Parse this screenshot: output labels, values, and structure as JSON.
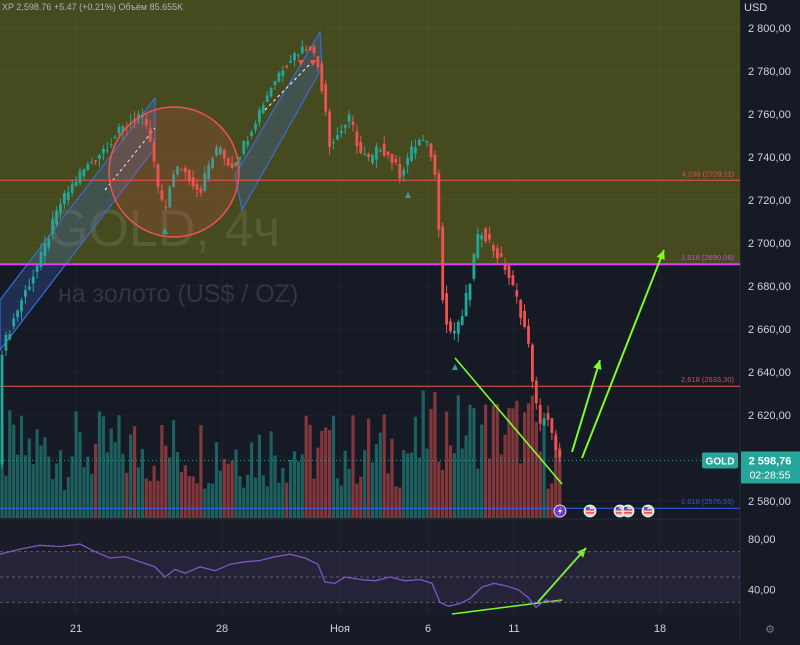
{
  "header": {
    "info": "XP 2,598.76 +5.47 (+0.21%) Объём 85.655K",
    "currency": "USD"
  },
  "watermark": {
    "symbol_tf": "GOLD, 4ч",
    "description": "на золото (US$ / OZ)"
  },
  "price_tag": {
    "label": "GOLD",
    "price": "2 598,76",
    "countdown": "02:28:55"
  },
  "fib_labels": [
    "4,236 (2729,11)",
    "1,618 (2690,06)",
    "2,618 (2633,30)",
    "1,618 (2576,55)"
  ],
  "colors": {
    "bull": "#26a69a",
    "bear": "#ef5350",
    "zone": "#454a1f",
    "arrow": "#7cfc2a",
    "channel": "#3d6bd8",
    "rsi": "#7e57c2",
    "background": "#161a25"
  },
  "icons": [
    "lightning-icon",
    "us-flag-icon",
    "us-flag-icon",
    "us-flag-icon",
    "us-flag-icon"
  ],
  "chart_data": [
    {
      "type": "candlestick",
      "title": "GOLD, 4ч",
      "subtitle": "на золото (US$ / OZ)",
      "y_ticks": [
        "2 580,00",
        "2 600,00",
        "2 620,00",
        "2 640,00",
        "2 660,00",
        "2 680,00",
        "2 700,00",
        "2 720,00",
        "2 740,00",
        "2 760,00",
        "2 780,00",
        "2 800,00"
      ],
      "x_ticks": [
        "21",
        "28",
        "Ноя",
        "6",
        "11",
        "18"
      ],
      "ylim": [
        2572,
        2813
      ],
      "levels": [
        {
          "label": "4,236 (2729,11)",
          "price": 2729.11,
          "color": "#ef5350"
        },
        {
          "label": "1,618 (2690,06)",
          "price": 2690.06,
          "color": "#e040fb"
        },
        {
          "label": "2,618 (2633,30)",
          "price": 2633.3,
          "color": "#ef5350"
        },
        {
          "label": "1,618 (2576,55)",
          "price": 2576.55,
          "color": "#2962ff"
        }
      ],
      "highlight_zone": {
        "from": 2690,
        "to": 2813
      },
      "last_price": 2598.76,
      "price_path": [
        [
          0,
          2648
        ],
        [
          20,
          2672
        ],
        [
          40,
          2692
        ],
        [
          60,
          2718
        ],
        [
          80,
          2732
        ],
        [
          100,
          2742
        ],
        [
          120,
          2752
        ],
        [
          140,
          2760
        ],
        [
          150,
          2748
        ],
        [
          155,
          2734
        ],
        [
          160,
          2720
        ],
        [
          165,
          2715
        ],
        [
          170,
          2728
        ],
        [
          180,
          2736
        ],
        [
          190,
          2730
        ],
        [
          200,
          2724
        ],
        [
          210,
          2738
        ],
        [
          220,
          2745
        ],
        [
          230,
          2735
        ],
        [
          240,
          2742
        ],
        [
          250,
          2752
        ],
        [
          260,
          2762
        ],
        [
          270,
          2772
        ],
        [
          280,
          2780
        ],
        [
          290,
          2786
        ],
        [
          300,
          2790
        ],
        [
          310,
          2792
        ],
        [
          318,
          2782
        ],
        [
          325,
          2765
        ],
        [
          330,
          2745
        ],
        [
          340,
          2752
        ],
        [
          350,
          2758
        ],
        [
          360,
          2742
        ],
        [
          370,
          2738
        ],
        [
          380,
          2745
        ],
        [
          390,
          2740
        ],
        [
          400,
          2732
        ],
        [
          410,
          2742
        ],
        [
          420,
          2748
        ],
        [
          430,
          2744
        ],
        [
          436,
          2728
        ],
        [
          440,
          2700
        ],
        [
          444,
          2664
        ],
        [
          452,
          2658
        ],
        [
          460,
          2662
        ],
        [
          470,
          2682
        ],
        [
          476,
          2700
        ],
        [
          482,
          2706
        ],
        [
          490,
          2700
        ],
        [
          500,
          2692
        ],
        [
          506,
          2688
        ],
        [
          512,
          2680
        ],
        [
          518,
          2672
        ],
        [
          524,
          2662
        ],
        [
          530,
          2648
        ],
        [
          534,
          2630
        ],
        [
          540,
          2614
        ],
        [
          546,
          2622
        ],
        [
          552,
          2610
        ],
        [
          557,
          2600
        ],
        [
          561,
          2598
        ]
      ],
      "volume_note": "volume bars, no scale shown"
    },
    {
      "type": "line",
      "name": "RSI",
      "y_ticks": [
        "40,00",
        "80,00"
      ],
      "ylim": [
        20,
        95
      ],
      "band": [
        30,
        70
      ],
      "values": [
        [
          0,
          68
        ],
        [
          20,
          72
        ],
        [
          40,
          75
        ],
        [
          60,
          74
        ],
        [
          80,
          76
        ],
        [
          95,
          70
        ],
        [
          110,
          65
        ],
        [
          125,
          66
        ],
        [
          140,
          62
        ],
        [
          155,
          58
        ],
        [
          165,
          50
        ],
        [
          175,
          56
        ],
        [
          185,
          53
        ],
        [
          200,
          58
        ],
        [
          215,
          55
        ],
        [
          230,
          60
        ],
        [
          245,
          62
        ],
        [
          260,
          63
        ],
        [
          275,
          66
        ],
        [
          290,
          68
        ],
        [
          305,
          65
        ],
        [
          318,
          60
        ],
        [
          325,
          46
        ],
        [
          335,
          45
        ],
        [
          345,
          50
        ],
        [
          360,
          48
        ],
        [
          375,
          47
        ],
        [
          390,
          50
        ],
        [
          405,
          47
        ],
        [
          420,
          48
        ],
        [
          432,
          45
        ],
        [
          440,
          30
        ],
        [
          448,
          27
        ],
        [
          460,
          29
        ],
        [
          470,
          33
        ],
        [
          482,
          42
        ],
        [
          494,
          45
        ],
        [
          506,
          43
        ],
        [
          518,
          40
        ],
        [
          528,
          34
        ],
        [
          536,
          26
        ],
        [
          546,
          32
        ],
        [
          552,
          30
        ],
        [
          560,
          31
        ]
      ]
    }
  ]
}
